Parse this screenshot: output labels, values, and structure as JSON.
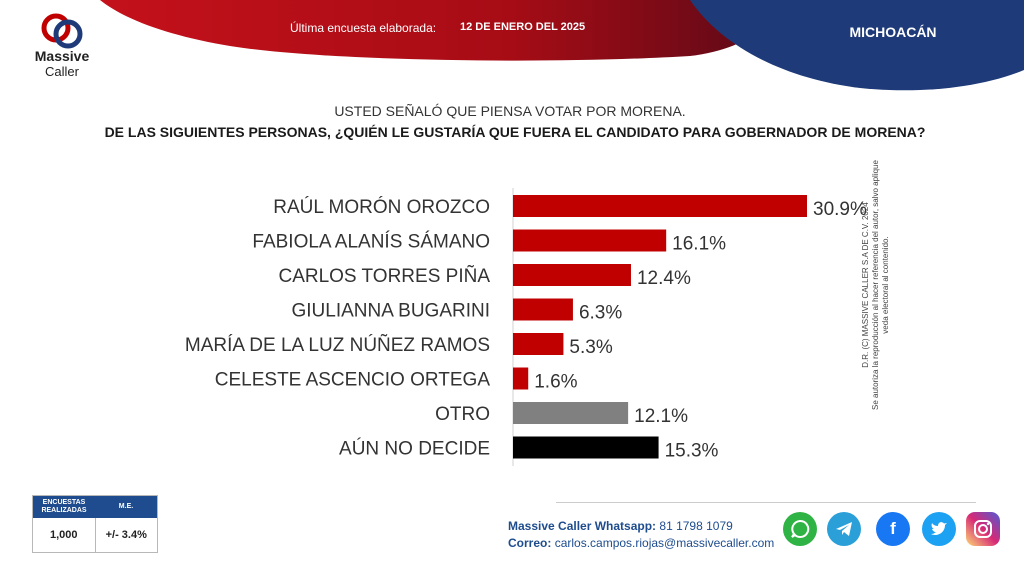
{
  "header": {
    "logo_line1": "Massive",
    "logo_line2": "Caller",
    "survey_label": "Última encuesta elaborada:",
    "survey_date": "12 DE ENERO DEL 2025",
    "region": "MICHOACÁN"
  },
  "question": {
    "subtitle": "USTED SEÑALÓ QUE PIENSA VOTAR POR MORENA.",
    "title": "DE LAS SIGUIENTES PERSONAS, ¿QUIÉN LE GUSTARÍA QUE FUERA EL CANDIDATO PARA GOBERNADOR DE MORENA?"
  },
  "chart_data": {
    "type": "bar",
    "orientation": "horizontal",
    "categories": [
      "RAÚL MORÓN OROZCO",
      "FABIOLA ALANÍS SÁMANO",
      "CARLOS TORRES PIÑA",
      "GIULIANNA BUGARINI",
      "MARÍA DE LA LUZ NÚÑEZ RAMOS",
      "CELESTE ASCENCIO ORTEGA",
      "OTRO",
      "AÚN NO DECIDE"
    ],
    "values": [
      30.9,
      16.1,
      12.4,
      6.3,
      5.3,
      1.6,
      12.1,
      15.3
    ],
    "value_labels": [
      "30.9%",
      "16.1%",
      "12.4%",
      "6.3%",
      "5.3%",
      "1.6%",
      "12.1%",
      "15.3%"
    ],
    "bar_colors": [
      "#c00000",
      "#c00000",
      "#c00000",
      "#c00000",
      "#c00000",
      "#c00000",
      "#808080",
      "#000000"
    ],
    "xlim": [
      0,
      30.9
    ]
  },
  "copyright": {
    "line1": "D.R. (C) MASSIVE CALLER S.A DE C.V. 2024",
    "line2": "Se autoriza la reproducción al hacer referencia del autor, salvo aplique veda electoral al contenido."
  },
  "stats": {
    "header_surveys": "ENCUESTAS REALIZADAS",
    "header_me": "M.E.",
    "surveys": "1,000",
    "me": "+/- 3.4%"
  },
  "contact": {
    "whatsapp_label": "Massive Caller Whatsapp:",
    "whatsapp_value": "81 1798 1079",
    "email_label": "Correo:",
    "email_value": "carlos.campos.riojas@massivecaller.com"
  },
  "social_icons": [
    "whatsapp-icon",
    "telegram-icon",
    "facebook-icon",
    "twitter-icon",
    "instagram-icon"
  ],
  "colors": {
    "red": "#c00000",
    "navy": "#1e3a78",
    "blue": "#1e4c8e"
  }
}
